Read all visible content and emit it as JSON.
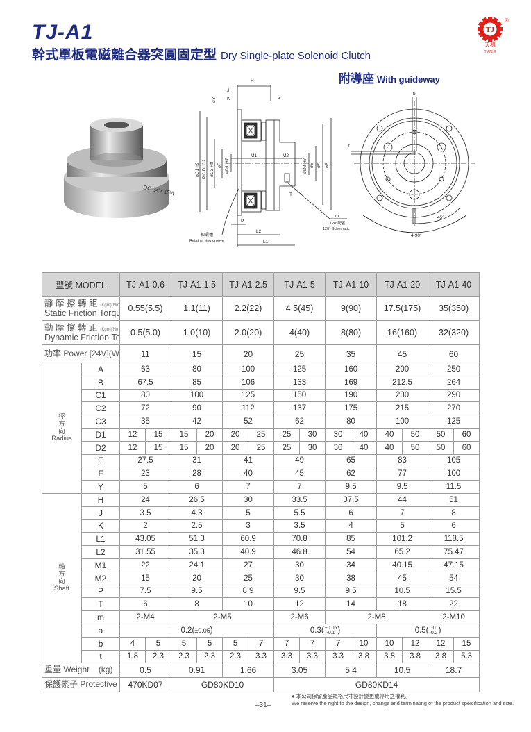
{
  "header": {
    "title": "TJ-A1",
    "subtitle_cn": "幹式單板電磁離合器突圓固定型",
    "subtitle_en": "Dry Single-plate Solenoid Clutch",
    "variant_cn": "附導座",
    "variant_en": "With guideway",
    "logo": {
      "mark": "TJ",
      "cn": "天机",
      "en": "TIAN JI",
      "registered": "®",
      "color": "#e0201b"
    },
    "brand_color": "#1d2b80"
  },
  "photo": {
    "label": "DC 24V 15W"
  },
  "drawing": {
    "side_labels": [
      "H",
      "J",
      "K",
      "øY",
      "a",
      "øC1 h9",
      "P.C.D. C2",
      "øC3 H8",
      "øF",
      "øD1 H7",
      "M1",
      "M2",
      "øD2 H7",
      "øE",
      "øA",
      "øB",
      "T",
      "m",
      "120°配置",
      "120° Schematic",
      "P",
      "L2",
      "L1",
      "扣環槽",
      "Retainer ring groove"
    ],
    "front_labels": [
      "b",
      "t",
      "45°",
      "4-90°"
    ]
  },
  "table": {
    "model_label": "型號 MODEL",
    "models": [
      "TJ-A1-0.6",
      "TJ-A1-1.5",
      "TJ-A1-2.5",
      "TJ-A1-5",
      "TJ-A1-10",
      "TJ-A1-20",
      "TJ-A1-40"
    ],
    "static": {
      "cn": "靜 摩 擦 轉 距",
      "en": "Static Friction Torque",
      "unit": "(Kgm)(Nm)",
      "values": [
        "0.55(5.5)",
        "1.1(11)",
        "2.2(22)",
        "4.5(45)",
        "9(90)",
        "17.5(175)",
        "35(350)"
      ]
    },
    "dynamic": {
      "cn": "動 摩 擦 轉 距",
      "en": "Dynamic Friction Torque",
      "unit": "(Kgm)(Nm)",
      "values": [
        "0.5(5.0)",
        "1.0(10)",
        "2.0(20)",
        "4(40)",
        "8(80)",
        "16(160)",
        "32(320)"
      ]
    },
    "power": {
      "label": "功率 Power [24V](W) at 20℃",
      "values": [
        "11",
        "15",
        "20",
        "25",
        "35",
        "45",
        "60"
      ]
    },
    "groups": [
      {
        "cn": "徑方向",
        "en": "Radius",
        "rows": [
          {
            "key": "A",
            "values": [
              "63",
              "80",
              "100",
              "125",
              "160",
              "200",
              "250"
            ]
          },
          {
            "key": "B",
            "values": [
              "67.5",
              "85",
              "106",
              "133",
              "169",
              "212.5",
              "264"
            ]
          },
          {
            "key": "C1",
            "values": [
              "80",
              "100",
              "125",
              "150",
              "190",
              "230",
              "290"
            ]
          },
          {
            "key": "C2",
            "values": [
              "72",
              "90",
              "112",
              "137",
              "175",
              "215",
              "270"
            ]
          },
          {
            "key": "C3",
            "values": [
              "35",
              "42",
              "52",
              "62",
              "80",
              "100",
              "125"
            ]
          },
          {
            "key": "D1",
            "split": [
              "12",
              "15",
              "15",
              "20",
              "20",
              "25",
              "25",
              "30",
              "30",
              "40",
              "40",
              "50",
              "50",
              "60"
            ]
          },
          {
            "key": "D2",
            "split": [
              "12",
              "15",
              "15",
              "20",
              "20",
              "25",
              "25",
              "30",
              "30",
              "40",
              "40",
              "50",
              "50",
              "60"
            ]
          },
          {
            "key": "E",
            "values": [
              "27.5",
              "31",
              "41",
              "49",
              "65",
              "83",
              "105"
            ]
          },
          {
            "key": "F",
            "values": [
              "23",
              "28",
              "40",
              "45",
              "62",
              "77",
              "100"
            ]
          },
          {
            "key": "Y",
            "values": [
              "5",
              "6",
              "7",
              "7",
              "9.5",
              "9.5",
              "11.5"
            ]
          }
        ]
      },
      {
        "cn": "軸方向",
        "en": "Shaft",
        "rows": [
          {
            "key": "H",
            "values": [
              "24",
              "26.5",
              "30",
              "33.5",
              "37.5",
              "44",
              "51"
            ]
          },
          {
            "key": "J",
            "values": [
              "3.5",
              "4.3",
              "5",
              "5.5",
              "6",
              "7",
              "8"
            ]
          },
          {
            "key": "K",
            "values": [
              "2",
              "2.5",
              "3",
              "3.5",
              "4",
              "5",
              "6"
            ]
          },
          {
            "key": "L1",
            "values": [
              "43.05",
              "51.3",
              "60.9",
              "70.8",
              "85",
              "101.2",
              "118.5"
            ]
          },
          {
            "key": "L2",
            "values": [
              "31.55",
              "35.3",
              "40.9",
              "46.8",
              "54",
              "65.2",
              "75.47"
            ]
          },
          {
            "key": "M1",
            "values": [
              "22",
              "24.1",
              "27",
              "30",
              "34",
              "40.15",
              "47.15"
            ]
          },
          {
            "key": "M2",
            "values": [
              "15",
              "20",
              "25",
              "30",
              "38",
              "45",
              "54"
            ]
          },
          {
            "key": "P",
            "values": [
              "7.5",
              "9.5",
              "8.9",
              "9.5",
              "9.5",
              "10.5",
              "15.5"
            ]
          },
          {
            "key": "T",
            "values": [
              "6",
              "8",
              "10",
              "12",
              "14",
              "18",
              "22"
            ]
          },
          {
            "key": "m",
            "merged": [
              {
                "v": "2-M4",
                "span": 2
              },
              {
                "v": "2-M5",
                "span": 4
              },
              {
                "v": "2-M6",
                "span": 2
              },
              {
                "v": "2-M8",
                "span": 4
              },
              {
                "v": "2-M10",
                "span": 2
              }
            ]
          },
          {
            "key": "a",
            "merged": [
              {
                "v": "0.2(",
                "tol": "±0.05",
                "close": ")",
                "span": 6
              },
              {
                "v": "0.3(",
                "upper": "+0.05",
                "lower": "-0.1",
                "close": ")",
                "span": 4
              },
              {
                "v": "0.5(",
                "upper": "-0",
                "lower": "-0.2",
                "close": ")",
                "span": 4
              }
            ]
          },
          {
            "key": "b",
            "split": [
              "4",
              "5",
              "5",
              "5",
              "5",
              "7",
              "7",
              "7",
              "7",
              "10",
              "10",
              "12",
              "12",
              "15"
            ]
          },
          {
            "key": "t",
            "split": [
              "1.8",
              "2.3",
              "2.3",
              "2.3",
              "2.3",
              "3.3",
              "3.3",
              "3.3",
              "3.3",
              "3.8",
              "3.8",
              "3.8",
              "3.8",
              "5.3"
            ]
          }
        ]
      }
    ],
    "weight": {
      "label": "重量 Weight",
      "unit": "(kg)",
      "values": [
        "0.5",
        "0.91",
        "1.66",
        "3.05",
        "5.4",
        "10.5",
        "18.7"
      ]
    },
    "band": {
      "label": "保護素子 Protective band",
      "merged": [
        {
          "v": "470KD07",
          "span": 2
        },
        {
          "v": "GD80KD10",
          "span": 4
        },
        {
          "v": "GD80KD14",
          "span": 8
        }
      ]
    }
  },
  "footer": {
    "page": "–31–",
    "note_cn": "本公司保留產品規格尺寸設計變更或停用之權利。",
    "note_en": "We reserve the right to the design, change and terminating of the product speicification and size."
  }
}
